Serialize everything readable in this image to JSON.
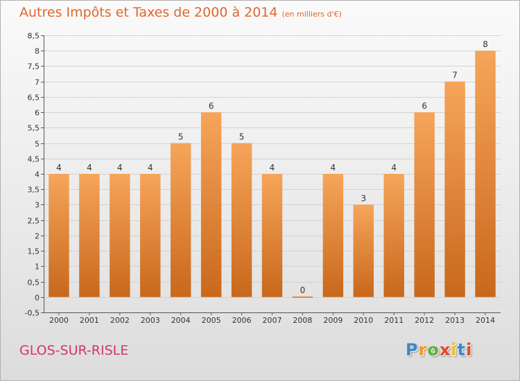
{
  "title": "Autres Impôts et Taxes de 2000 à 2014",
  "subtitle": "(en milliers d'€)",
  "town": "GLOS-SUR-RISLE",
  "logo": {
    "letters": [
      "P",
      "r",
      "o",
      "x",
      "i",
      "t",
      "i"
    ],
    "colors": [
      "#3f86c9",
      "#f29a1e",
      "#5bb531",
      "#e34a2a",
      "#f2c01e",
      "#3f86c9",
      "#e34a2a"
    ]
  },
  "colors": {
    "bar_top": "#f6a55a",
    "bar_bottom": "#c8681c",
    "grid": "#d2d2d2",
    "axis_text": "#333333"
  },
  "chart_data": {
    "type": "bar",
    "categories": [
      "2000",
      "2001",
      "2002",
      "2003",
      "2004",
      "2005",
      "2006",
      "2007",
      "2008",
      "2009",
      "2010",
      "2011",
      "2012",
      "2013",
      "2014"
    ],
    "values": [
      4,
      4,
      4,
      4,
      5,
      6,
      5,
      4,
      0,
      4,
      3,
      4,
      6,
      7,
      8
    ],
    "data_labels": [
      "4",
      "4",
      "4",
      "4",
      "5",
      "6",
      "5",
      "4",
      "0",
      "4",
      "3",
      "4",
      "6",
      "7",
      "8"
    ],
    "ylim": [
      -0.5,
      8.5
    ],
    "yticks": [
      -0.5,
      0,
      0.5,
      1,
      1.5,
      2,
      2.5,
      3,
      3.5,
      4,
      4.5,
      5,
      5.5,
      6,
      6.5,
      7,
      7.5,
      8,
      8.5
    ],
    "ytick_labels": [
      "-0,5",
      "0",
      "0,5",
      "1",
      "1,5",
      "2",
      "2,5",
      "3",
      "3,5",
      "4",
      "4,5",
      "5",
      "5,5",
      "6",
      "6,5",
      "7",
      "7,5",
      "8",
      "8,5"
    ],
    "grid": true,
    "xlabel": "",
    "ylabel": ""
  }
}
